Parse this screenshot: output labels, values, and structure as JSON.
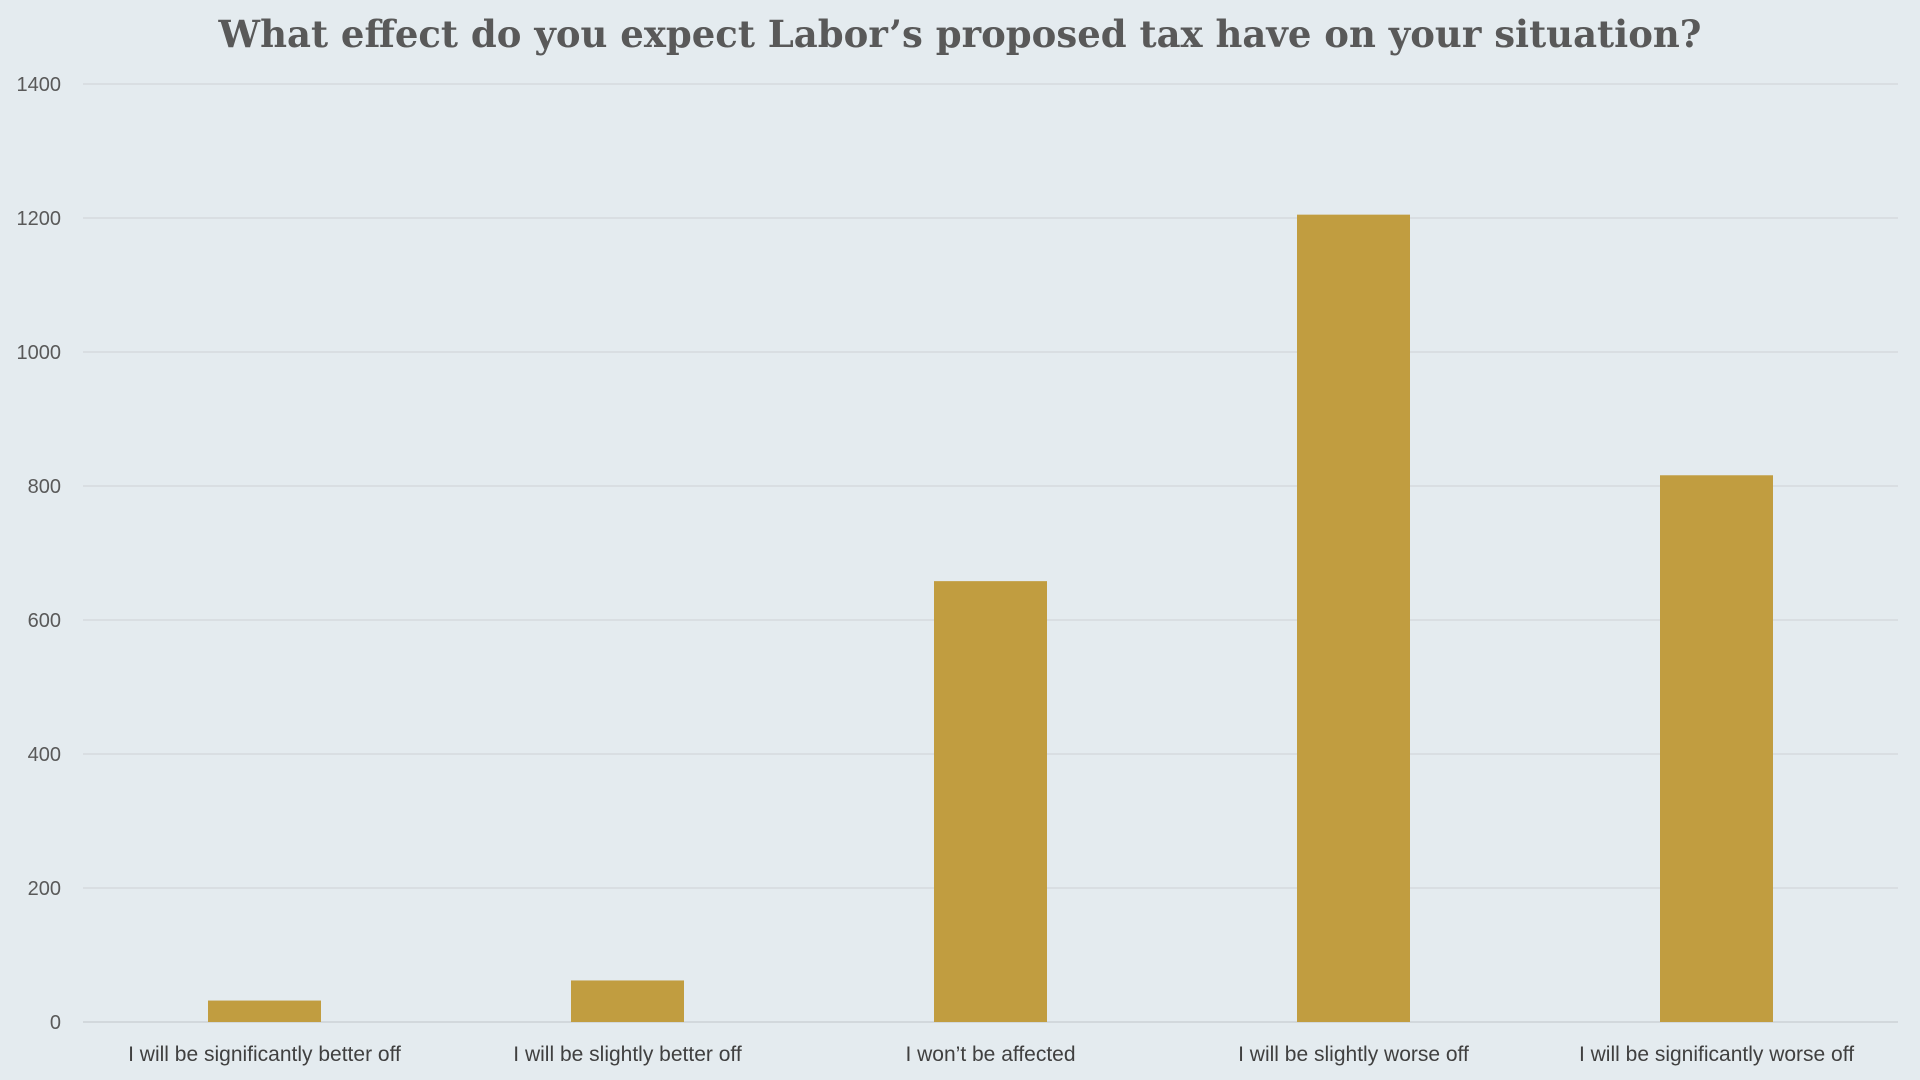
{
  "chart_data": {
    "type": "bar",
    "title": "What effect do you expect Labor’s proposed tax have on your situation?",
    "xlabel": "",
    "ylabel": "",
    "categories": [
      "I will be significantly better off",
      "I will be slightly better off",
      "I won’t be affected",
      "I will be slightly worse off",
      "I will be significantly worse off"
    ],
    "values": [
      32,
      62,
      658,
      1205,
      816
    ],
    "ylim": [
      0,
      1400
    ],
    "yticks": [
      0,
      200,
      400,
      600,
      800,
      1000,
      1200,
      1400
    ],
    "grid": true,
    "legend": "none",
    "bar_color": "#c19d40"
  }
}
